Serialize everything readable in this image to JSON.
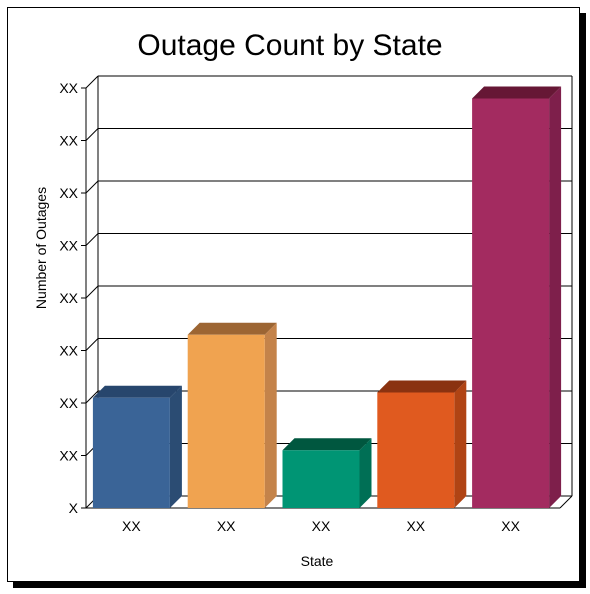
{
  "chart_data": {
    "type": "bar",
    "title": "Outage Count by State",
    "xlabel": "State",
    "ylabel": "Number of Outages",
    "categories": [
      "XX",
      "XX",
      "XX",
      "XX",
      "XX"
    ],
    "values": [
      2.1,
      3.3,
      1.1,
      2.2,
      7.8
    ],
    "ylim": [
      0,
      8
    ],
    "ytick_labels": [
      "X",
      "XX",
      "XX",
      "XX",
      "XX",
      "XX",
      "XX",
      "XX",
      "XX"
    ],
    "colors": [
      "#3a6497",
      "#f0a350",
      "#009574",
      "#e05a1f",
      "#a32b60"
    ],
    "side_colors": [
      "#2b4c73",
      "#c4834a",
      "#006f55",
      "#b04414",
      "#7e1f4b"
    ],
    "top_colors": [
      "#27466d",
      "#9c6533",
      "#00573f",
      "#8a3210",
      "#661735"
    ],
    "grid": true,
    "style": "3d"
  }
}
